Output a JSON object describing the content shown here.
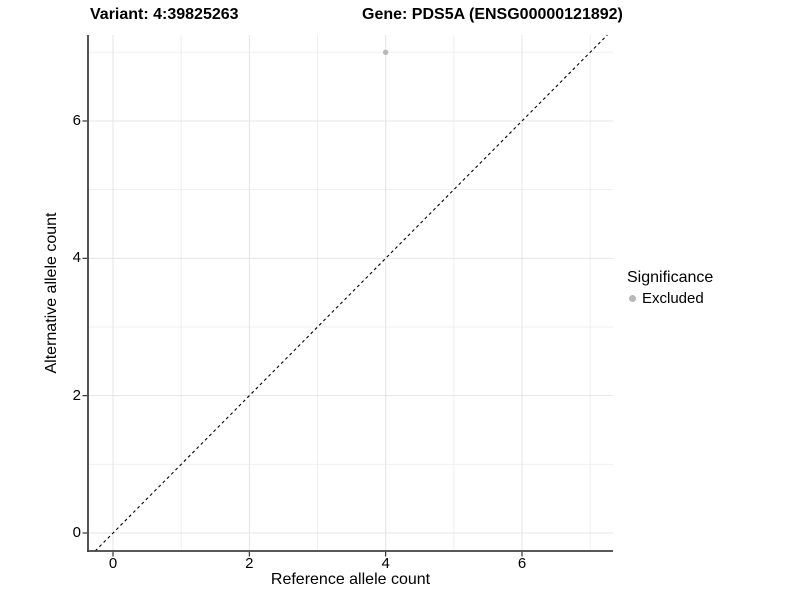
{
  "chart_data": {
    "type": "scatter",
    "title_left": "Variant: 4:39825263",
    "title_right": "Gene: PDS5A (ENSG00000121892)",
    "xlabel": "Reference allele count",
    "ylabel": "Alternative allele count",
    "x_ticks": [
      0,
      2,
      4,
      6
    ],
    "y_ticks": [
      0,
      2,
      4,
      6
    ],
    "x_minor_ticks": [
      1,
      3,
      5,
      7
    ],
    "y_minor_ticks": [
      1,
      3,
      5,
      7
    ],
    "xlim": [
      -0.367,
      7.335
    ],
    "ylim": [
      -0.262,
      7.252
    ],
    "grid": true,
    "series": [
      {
        "name": "Excluded",
        "color": "#b8b8b8",
        "points": [
          {
            "x": 4,
            "y": 7
          }
        ]
      }
    ],
    "reference_line": {
      "kind": "identity y=x",
      "style": "dashed",
      "color": "#000000"
    },
    "legend": {
      "position": "right",
      "title": "Significance",
      "entries": [
        {
          "label": "Excluded",
          "color": "#b8b8b8"
        }
      ]
    }
  },
  "colors": {
    "background": "#ffffff",
    "grid_major": "#e4e4e4",
    "grid_minor": "#efefef",
    "axis_line": "#404040",
    "tick": "#333333",
    "text": "#000000"
  }
}
